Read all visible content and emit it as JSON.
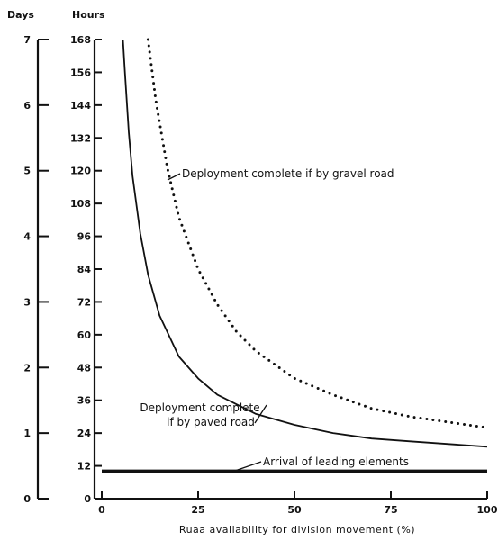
{
  "chart_data": {
    "type": "line",
    "xlabel": "Ruaa availability for division movement (%)",
    "ylabel_hours": "Hours",
    "ylabel_days": "Days",
    "xlim": [
      0,
      100
    ],
    "ylim_hours": [
      0,
      168
    ],
    "ylim_days": [
      0,
      7
    ],
    "x_ticks": [
      0,
      25,
      50,
      75,
      100
    ],
    "hour_ticks": [
      0,
      12,
      24,
      36,
      48,
      60,
      72,
      84,
      96,
      108,
      120,
      132,
      144,
      156,
      168
    ],
    "day_ticks": [
      0,
      1,
      2,
      3,
      4,
      5,
      6,
      7
    ],
    "series": [
      {
        "name": "Deployment complete if by gravel road",
        "style": "dotted",
        "x": [
          12,
          14,
          17,
          20,
          25,
          30,
          35,
          40,
          50,
          60,
          70,
          80,
          90,
          100
        ],
        "y": [
          168,
          146,
          121,
          103,
          84,
          71,
          61,
          54,
          44,
          38,
          33,
          30,
          28,
          26
        ]
      },
      {
        "name": "Deployment complete if by paved road",
        "style": "solid",
        "x": [
          5.5,
          6,
          7,
          8,
          10,
          12,
          15,
          20,
          25,
          30,
          40,
          50,
          60,
          70,
          80,
          90,
          100
        ],
        "y": [
          168,
          156,
          134,
          118,
          97,
          82,
          67,
          52,
          44,
          38,
          31,
          27,
          24,
          22,
          21,
          20,
          19
        ]
      },
      {
        "name": "Arrival of leading elements",
        "style": "thick",
        "x": [
          0,
          100
        ],
        "y": [
          10,
          10
        ]
      }
    ],
    "annotations": [
      {
        "text_lines": [
          "Deployment complete if by gravel road"
        ]
      },
      {
        "text_lines": [
          "Deployment complete",
          "if by paved road"
        ]
      },
      {
        "text_lines": [
          "Arrival of leading elements"
        ]
      }
    ],
    "colors": {
      "ink": "#111111",
      "background": "#ffffff"
    }
  }
}
